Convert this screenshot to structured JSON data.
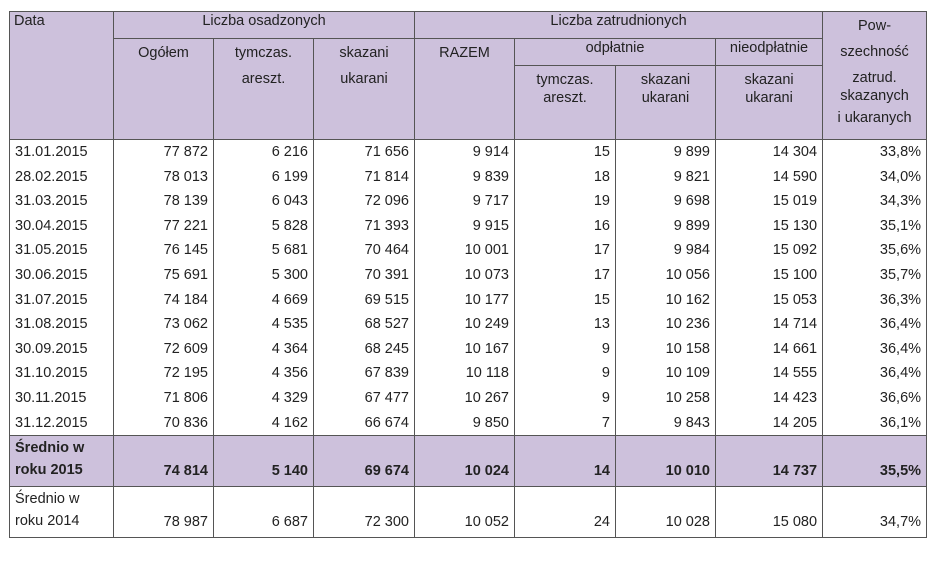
{
  "header": {
    "data": "Data",
    "osadzeni_group": "Liczba osadzonych",
    "zatrudnieni_group": "Liczba zatrudnionych",
    "pow_line1": "Pow-",
    "pow_line2": "szechność",
    "pow_line3": "zatrud.",
    "pow_line4": "skazanych",
    "pow_line5": "i ukaranych",
    "ogolem": "Ogółem",
    "tymczas_1": "tymczas.",
    "tymczas_2": "areszt.",
    "skazani_1": "skazani",
    "skazani_2": "ukarani",
    "razem": "RAZEM",
    "odplatnie": "odpłatnie",
    "nieodplatnie": "nieodpłatnie",
    "sub_tymczas_1": "tymczas.",
    "sub_tymczas_2": "areszt.",
    "sub_skazani_1": "skazani",
    "sub_skazani_2": "ukarani",
    "nie_skazani_1": "skazani",
    "nie_skazani_2": "ukarani"
  },
  "rows": [
    {
      "date": "31.01.2015",
      "ogolem": "77 872",
      "tymczas": "6 216",
      "skazani": "71 656",
      "razem": "9 914",
      "odp_tymczas": "15",
      "odp_skazani": "9 899",
      "nieodp": "14 304",
      "pow": "33,8%"
    },
    {
      "date": "28.02.2015",
      "ogolem": "78 013",
      "tymczas": "6 199",
      "skazani": "71 814",
      "razem": "9 839",
      "odp_tymczas": "18",
      "odp_skazani": "9 821",
      "nieodp": "14 590",
      "pow": "34,0%"
    },
    {
      "date": "31.03.2015",
      "ogolem": "78 139",
      "tymczas": "6 043",
      "skazani": "72 096",
      "razem": "9 717",
      "odp_tymczas": "19",
      "odp_skazani": "9 698",
      "nieodp": "15 019",
      "pow": "34,3%"
    },
    {
      "date": "30.04.2015",
      "ogolem": "77 221",
      "tymczas": "5 828",
      "skazani": "71 393",
      "razem": "9 915",
      "odp_tymczas": "16",
      "odp_skazani": "9 899",
      "nieodp": "15 130",
      "pow": "35,1%"
    },
    {
      "date": "31.05.2015",
      "ogolem": "76 145",
      "tymczas": "5 681",
      "skazani": "70 464",
      "razem": "10 001",
      "odp_tymczas": "17",
      "odp_skazani": "9 984",
      "nieodp": "15 092",
      "pow": "35,6%"
    },
    {
      "date": "30.06.2015",
      "ogolem": "75 691",
      "tymczas": "5 300",
      "skazani": "70 391",
      "razem": "10 073",
      "odp_tymczas": "17",
      "odp_skazani": "10 056",
      "nieodp": "15 100",
      "pow": "35,7%"
    },
    {
      "date": "31.07.2015",
      "ogolem": "74 184",
      "tymczas": "4 669",
      "skazani": "69 515",
      "razem": "10 177",
      "odp_tymczas": "15",
      "odp_skazani": "10 162",
      "nieodp": "15 053",
      "pow": "36,3%"
    },
    {
      "date": "31.08.2015",
      "ogolem": "73 062",
      "tymczas": "4 535",
      "skazani": "68 527",
      "razem": "10 249",
      "odp_tymczas": "13",
      "odp_skazani": "10 236",
      "nieodp": "14 714",
      "pow": "36,4%"
    },
    {
      "date": "30.09.2015",
      "ogolem": "72 609",
      "tymczas": "4 364",
      "skazani": "68 245",
      "razem": "10 167",
      "odp_tymczas": "9",
      "odp_skazani": "10 158",
      "nieodp": "14 661",
      "pow": "36,4%"
    },
    {
      "date": "31.10.2015",
      "ogolem": "72 195",
      "tymczas": "4 356",
      "skazani": "67 839",
      "razem": "10 118",
      "odp_tymczas": "9",
      "odp_skazani": "10 109",
      "nieodp": "14 555",
      "pow": "36,4%"
    },
    {
      "date": "30.11.2015",
      "ogolem": "71 806",
      "tymczas": "4 329",
      "skazani": "67 477",
      "razem": "10 267",
      "odp_tymczas": "9",
      "odp_skazani": "10 258",
      "nieodp": "14 423",
      "pow": "36,6%"
    },
    {
      "date": "31.12.2015",
      "ogolem": "70 836",
      "tymczas": "4 162",
      "skazani": "66 674",
      "razem": "9 850",
      "odp_tymczas": "7",
      "odp_skazani": "9 843",
      "nieodp": "14 205",
      "pow": "36,1%"
    }
  ],
  "avg2015": {
    "label_1": "Średnio w",
    "label_2": "roku 2015",
    "ogolem": "74 814",
    "tymczas": "5 140",
    "skazani": "69 674",
    "razem": "10 024",
    "odp_tymczas": "14",
    "odp_skazani": "10 010",
    "nieodp": "14 737",
    "pow": "35,5%"
  },
  "avg2014": {
    "label_1": "Średnio w",
    "label_2": "roku 2014",
    "ogolem": "78 987",
    "tymczas": "6 687",
    "skazani": "72 300",
    "razem": "10 052",
    "odp_tymczas": "24",
    "odp_skazani": "10 028",
    "nieodp": "15 080",
    "pow": "34,7%"
  }
}
